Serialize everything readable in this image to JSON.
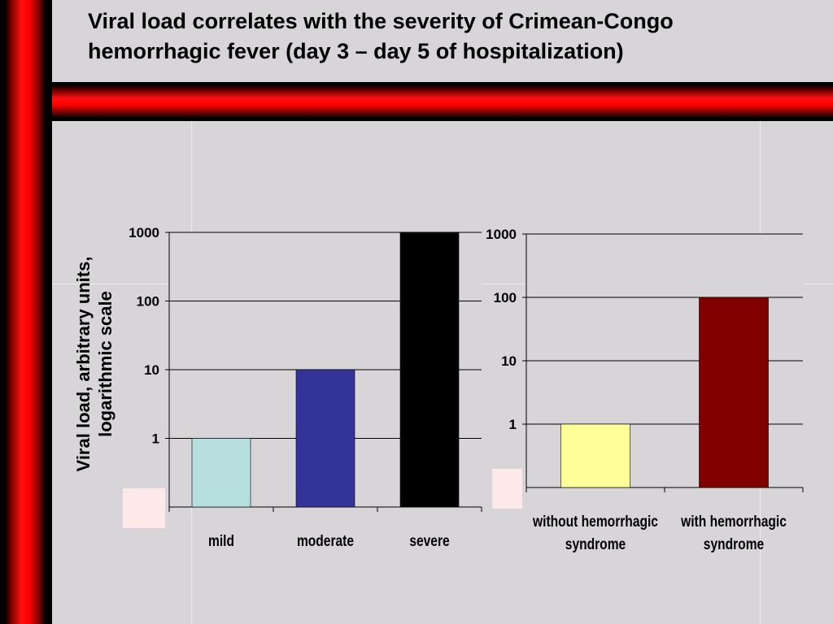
{
  "slide": {
    "title": "Viral load correlates with the severity of Crimean-Congo hemorrhagic fever (day 3 – day 5 of hospitalization)"
  },
  "colors": {
    "background": "#d7d5d7",
    "accent_red": "#ff0000"
  },
  "chart_data": [
    {
      "type": "bar",
      "yscale": "log",
      "ylim": [
        0.1,
        1000
      ],
      "yticks": [
        "1",
        "10",
        "100",
        "1000"
      ],
      "ylabel_lines": [
        "Viral load, arbitrary units,",
        "logarithmic scale"
      ],
      "categories": [
        [
          "mild"
        ],
        [
          "moderate"
        ],
        [
          "severe"
        ]
      ],
      "values": [
        1,
        10,
        1000
      ],
      "colors": [
        "#b8dfe0",
        "#333399",
        "#000000"
      ]
    },
    {
      "type": "bar",
      "yscale": "log",
      "ylim": [
        0.1,
        1000
      ],
      "yticks": [
        "1",
        "10",
        "100",
        "1000"
      ],
      "categories": [
        [
          "without hemorrhagic",
          "syndrome"
        ],
        [
          "with hemorrhagic",
          "syndrome"
        ]
      ],
      "values": [
        1,
        100
      ],
      "colors": [
        "#ffff99",
        "#800000"
      ]
    }
  ]
}
